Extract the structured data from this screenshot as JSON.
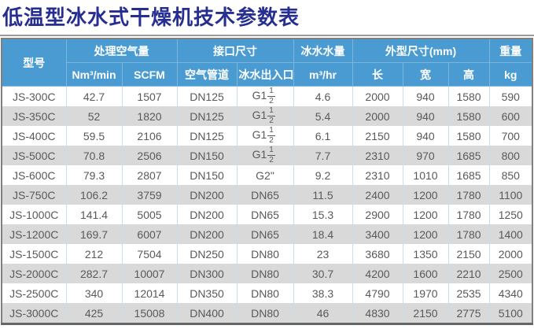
{
  "title": "低温型冰水式干燥机技术参数表",
  "colors": {
    "title_text": "#272E91",
    "header_bg": "#4A9BD1",
    "header_separator": "#7CB5DE",
    "row_stripe": "#D9D9D9",
    "column_separator": "#C5DEF0",
    "body_text": "#595959",
    "outer_border": "#7f7f7f"
  },
  "table": {
    "header_groups": {
      "model": "型号",
      "air_capacity": "处理空气量",
      "port_size": "接口尺寸",
      "ice_water_flow": "冰水水量",
      "dimensions": "外型尺寸(mm)",
      "weight": "重量"
    },
    "header_sub": {
      "nm3min": "Nm³/min",
      "scfm": "SCFM",
      "air_pipe": "空气管道",
      "ice_water_inout": "冰水出入口",
      "m3hr": "m³/hr",
      "length": "长",
      "width": "宽",
      "height": "高",
      "kg": "kg"
    },
    "rows": [
      [
        "JS-300C",
        "42.7",
        "1507",
        "DN125",
        "G1-1/2\"",
        "4.6",
        "2000",
        "940",
        "1580",
        "590"
      ],
      [
        "JS-350C",
        "52",
        "1820",
        "DN125",
        "G1-1/2\"",
        "5.4",
        "2000",
        "940",
        "1580",
        "600"
      ],
      [
        "JS-400C",
        "59.5",
        "2106",
        "DN125",
        "G1-1/2\"",
        "6.1",
        "2150",
        "940",
        "1580",
        "700"
      ],
      [
        "JS-500C",
        "70.8",
        "2506",
        "DN150",
        "G1-1/2\"",
        "7.7",
        "2310",
        "970",
        "1685",
        "800"
      ],
      [
        "JS-600C",
        "79.3",
        "2807",
        "DN150",
        "G2\"",
        "9.2",
        "2310",
        "1010",
        "1685",
        "850"
      ],
      [
        "JS-750C",
        "106.2",
        "3759",
        "DN200",
        "DN65",
        "11.5",
        "2400",
        "1200",
        "1780",
        "1100"
      ],
      [
        "JS-1000C",
        "141.4",
        "5005",
        "DN200",
        "DN65",
        "15.3",
        "2900",
        "1200",
        "1780",
        "1250"
      ],
      [
        "JS-1200C",
        "169.7",
        "6007",
        "DN200",
        "DN65",
        "18.4",
        "3400",
        "1200",
        "1780",
        "1400"
      ],
      [
        "JS-1500C",
        "212",
        "7504",
        "DN250",
        "DN80",
        "23",
        "3680",
        "1350",
        "2150",
        "2000"
      ],
      [
        "JS-2000C",
        "282.7",
        "10007",
        "DN300",
        "DN80",
        "30.7",
        "4200",
        "1600",
        "2210",
        "2500"
      ],
      [
        "JS-2500C",
        "340",
        "12014",
        "DN350",
        "DN80",
        "38.3",
        "4790",
        "1970",
        "2535",
        "4340"
      ],
      [
        "JS-3000C",
        "425",
        "15008",
        "DN400",
        "DN80",
        "46",
        "4830",
        "2150",
        "2775",
        "5100"
      ]
    ]
  }
}
